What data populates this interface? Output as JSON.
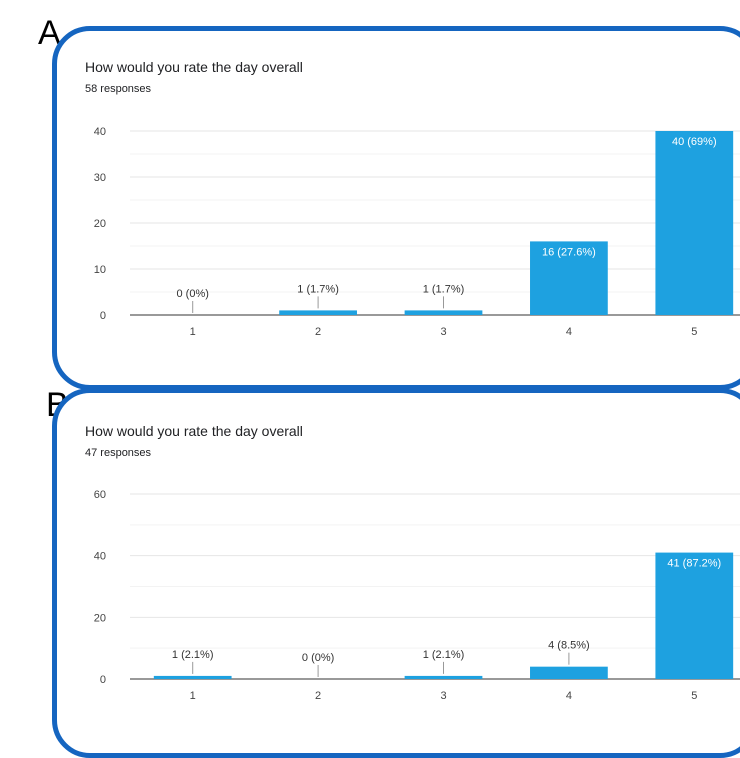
{
  "chart_data": [
    {
      "panel_label": "A",
      "type": "bar",
      "title": "How would you rate the day overall",
      "subtitle": "58 responses",
      "categories": [
        "1",
        "2",
        "3",
        "4",
        "5"
      ],
      "values": [
        0,
        1,
        1,
        16,
        40
      ],
      "data_labels": [
        "0 (0%)",
        "1 (1.7%)",
        "1 (1.7%)",
        "16 (27.6%)",
        "40 (69%)"
      ],
      "yticks": [
        0,
        10,
        20,
        30,
        40
      ],
      "ylim": [
        0,
        40
      ],
      "grid": true,
      "bar_color": "#1ea1e0"
    },
    {
      "panel_label": "B",
      "type": "bar",
      "title": "How would you rate the day overall",
      "subtitle": "47 responses",
      "categories": [
        "1",
        "2",
        "3",
        "4",
        "5"
      ],
      "values": [
        1,
        0,
        1,
        4,
        41
      ],
      "data_labels": [
        "1 (2.1%)",
        "0 (0%)",
        "1 (2.1%)",
        "4 (8.5%)",
        "41 (87.2%)"
      ],
      "yticks": [
        0,
        20,
        40,
        60
      ],
      "ylim": [
        0,
        60
      ],
      "grid": true,
      "bar_color": "#1ea1e0"
    }
  ]
}
